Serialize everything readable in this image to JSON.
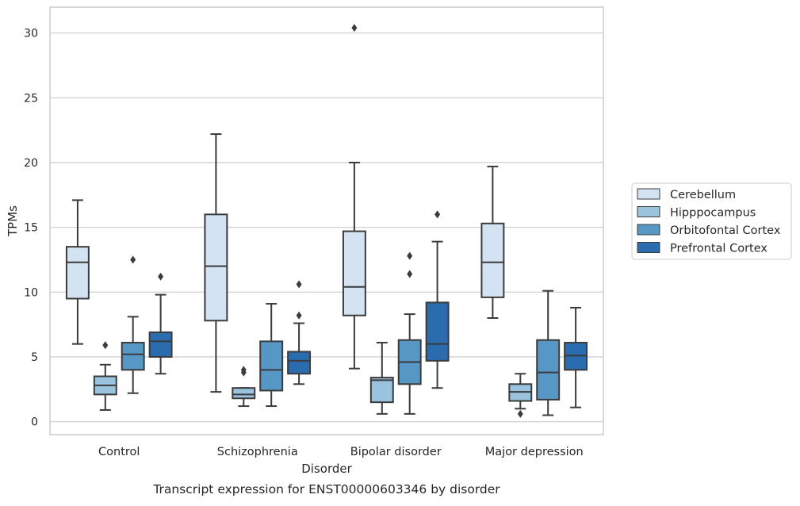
{
  "chart_data": {
    "type": "box",
    "caption": "Transcript expression for ENST00000603346 by disorder",
    "xlabel": "Disorder",
    "ylabel": "TPMs",
    "ylim": [
      -1,
      32
    ],
    "yticks": [
      0,
      5,
      10,
      15,
      20,
      25,
      30
    ],
    "grid": "horizontal",
    "legend_position": "right",
    "categories": [
      "Control",
      "Schizophrenia",
      "Bipolar disorder",
      "Major depression"
    ],
    "series": [
      {
        "name": "Cerebellum",
        "color": "#d4e3f2",
        "boxes": [
          {
            "whisker_low": 6.0,
            "q1": 9.5,
            "median": 12.3,
            "q3": 13.5,
            "whisker_high": 17.1,
            "outliers": []
          },
          {
            "whisker_low": 2.3,
            "q1": 7.8,
            "median": 12.0,
            "q3": 16.0,
            "whisker_high": 22.2,
            "outliers": []
          },
          {
            "whisker_low": 4.1,
            "q1": 8.2,
            "median": 10.4,
            "q3": 14.7,
            "whisker_high": 20.0,
            "outliers": [
              30.4
            ]
          },
          {
            "whisker_low": 8.0,
            "q1": 9.6,
            "median": 12.3,
            "q3": 15.3,
            "whisker_high": 19.7,
            "outliers": []
          }
        ]
      },
      {
        "name": "Hipppocampus",
        "color": "#9ac3de",
        "boxes": [
          {
            "whisker_low": 0.9,
            "q1": 2.1,
            "median": 2.8,
            "q3": 3.5,
            "whisker_high": 4.4,
            "outliers": [
              5.9
            ]
          },
          {
            "whisker_low": 1.2,
            "q1": 1.8,
            "median": 2.1,
            "q3": 2.6,
            "whisker_high": 2.6,
            "outliers": [
              3.8,
              4.0
            ]
          },
          {
            "whisker_low": 0.6,
            "q1": 1.5,
            "median": 3.2,
            "q3": 3.4,
            "whisker_high": 6.1,
            "outliers": []
          },
          {
            "whisker_low": 1.0,
            "q1": 1.6,
            "median": 2.3,
            "q3": 2.9,
            "whisker_high": 3.7,
            "outliers": [
              0.6
            ]
          }
        ]
      },
      {
        "name": "Orbitofontal Cortex",
        "color": "#5797c6",
        "boxes": [
          {
            "whisker_low": 2.2,
            "q1": 4.0,
            "median": 5.2,
            "q3": 6.1,
            "whisker_high": 8.1,
            "outliers": [
              12.5
            ]
          },
          {
            "whisker_low": 1.2,
            "q1": 2.4,
            "median": 4.0,
            "q3": 6.2,
            "whisker_high": 9.1,
            "outliers": []
          },
          {
            "whisker_low": 0.6,
            "q1": 2.9,
            "median": 4.6,
            "q3": 6.3,
            "whisker_high": 8.3,
            "outliers": [
              11.4,
              12.8
            ]
          },
          {
            "whisker_low": 0.5,
            "q1": 1.7,
            "median": 3.8,
            "q3": 6.3,
            "whisker_high": 10.1,
            "outliers": []
          }
        ]
      },
      {
        "name": "Prefrontal Cortex",
        "color": "#2b6caf",
        "boxes": [
          {
            "whisker_low": 3.7,
            "q1": 5.0,
            "median": 6.2,
            "q3": 6.9,
            "whisker_high": 9.8,
            "outliers": [
              11.2
            ]
          },
          {
            "whisker_low": 2.9,
            "q1": 3.7,
            "median": 4.7,
            "q3": 5.4,
            "whisker_high": 7.6,
            "outliers": [
              8.2,
              10.6
            ]
          },
          {
            "whisker_low": 2.6,
            "q1": 4.7,
            "median": 6.0,
            "q3": 9.2,
            "whisker_high": 13.9,
            "outliers": [
              16.0
            ]
          },
          {
            "whisker_low": 1.1,
            "q1": 4.0,
            "median": 5.1,
            "q3": 6.1,
            "whisker_high": 8.8,
            "outliers": []
          }
        ]
      }
    ]
  }
}
